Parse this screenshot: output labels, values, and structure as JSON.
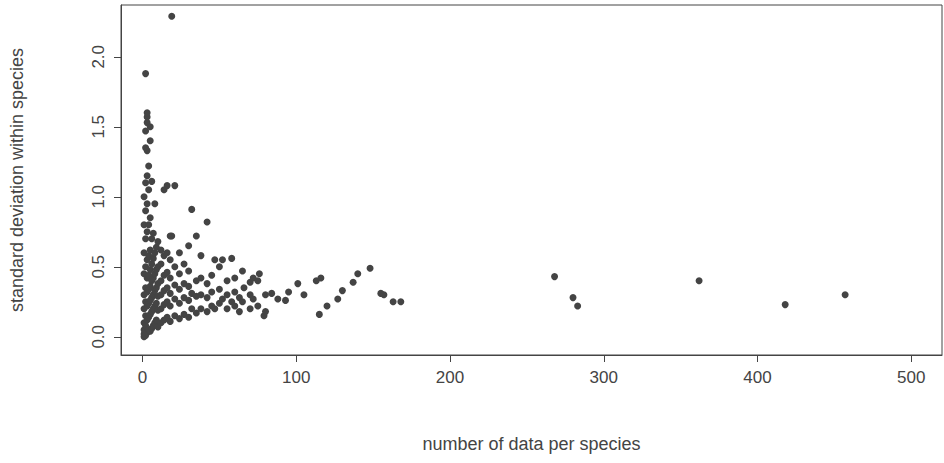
{
  "chart_data": {
    "type": "scatter",
    "x_label": "number of data per species",
    "y_label": "standard deviation within species",
    "color": "#444444",
    "marker": "circle",
    "grid": false,
    "xlim": [
      -14,
      520
    ],
    "ylim": [
      -0.13,
      2.37
    ],
    "xticks": [
      0,
      100,
      200,
      300,
      400,
      500
    ],
    "yticks": [
      {
        "value": 0,
        "label": "0.0"
      },
      {
        "value": 0.5,
        "label": "0.5"
      },
      {
        "value": 1,
        "label": "1.0"
      },
      {
        "value": 1.5,
        "label": "1.5"
      },
      {
        "value": 2,
        "label": "2.0"
      }
    ],
    "x": [
      1,
      1,
      1,
      1,
      1,
      1,
      1,
      1,
      1,
      1,
      2,
      2,
      2,
      2,
      2,
      2,
      2,
      2,
      2,
      2,
      2,
      2,
      3,
      3,
      3,
      3,
      3,
      3,
      3,
      3,
      3,
      3,
      3,
      3,
      3,
      4,
      4,
      4,
      4,
      4,
      4,
      4,
      4,
      4,
      5,
      5,
      5,
      5,
      5,
      5,
      5,
      5,
      5,
      6,
      6,
      6,
      6,
      6,
      6,
      6,
      7,
      7,
      7,
      7,
      7,
      7,
      8,
      8,
      8,
      8,
      8,
      8,
      9,
      9,
      9,
      9,
      9,
      10,
      10,
      10,
      10,
      10,
      10,
      12,
      12,
      12,
      12,
      12,
      12,
      14,
      14,
      14,
      14,
      14,
      14,
      16,
      16,
      16,
      16,
      16,
      16,
      18,
      18,
      18,
      18,
      18,
      18,
      19,
      19,
      21,
      21,
      21,
      21,
      21,
      24,
      24,
      24,
      24,
      24,
      27,
      27,
      27,
      27,
      30,
      30,
      30,
      30,
      30,
      32,
      32,
      32,
      35,
      35,
      35,
      35,
      38,
      38,
      38,
      38,
      42,
      42,
      42,
      42,
      45,
      45,
      45,
      47,
      47,
      50,
      50,
      50,
      52,
      52,
      55,
      55,
      55,
      58,
      58,
      60,
      60,
      60,
      63,
      63,
      65,
      65,
      66,
      70,
      70,
      70,
      72,
      72,
      75,
      75,
      76,
      79,
      80,
      80,
      84,
      88,
      93,
      95,
      101,
      105,
      113,
      115,
      116,
      120,
      127,
      130,
      137,
      140,
      148,
      155,
      157,
      163,
      168,
      268,
      280,
      283,
      362,
      418,
      457
    ],
    "values": [
      0.0,
      0.02,
      0.05,
      0.1,
      0.2,
      0.3,
      0.45,
      0.6,
      0.8,
      1.0,
      0.01,
      0.08,
      0.15,
      0.25,
      0.35,
      0.5,
      0.7,
      0.9,
      1.1,
      1.35,
      1.47,
      1.88,
      0.03,
      0.12,
      0.22,
      0.32,
      0.42,
      0.55,
      0.75,
      0.95,
      1.15,
      1.33,
      1.53,
      1.57,
      1.6,
      0.05,
      0.14,
      0.24,
      0.34,
      0.44,
      0.58,
      0.8,
      1.05,
      1.22,
      0.04,
      0.16,
      0.26,
      0.36,
      0.48,
      0.62,
      0.85,
      1.4,
      1.5,
      0.06,
      0.18,
      0.28,
      0.4,
      0.52,
      0.7,
      1.11,
      0.08,
      0.2,
      0.3,
      0.42,
      0.56,
      0.74,
      0.1,
      0.22,
      0.33,
      0.45,
      0.6,
      0.95,
      0.12,
      0.24,
      0.35,
      0.48,
      0.64,
      0.07,
      0.19,
      0.29,
      0.38,
      0.5,
      0.68,
      0.1,
      0.2,
      0.3,
      0.4,
      0.52,
      0.62,
      0.12,
      0.23,
      0.33,
      0.44,
      0.58,
      1.05,
      0.14,
      0.25,
      0.35,
      0.46,
      0.6,
      1.08,
      0.11,
      0.22,
      0.31,
      0.42,
      0.55,
      0.72,
      2.29,
      0.72,
      0.15,
      0.27,
      0.37,
      0.5,
      1.08,
      0.13,
      0.24,
      0.34,
      0.45,
      0.6,
      0.16,
      0.28,
      0.38,
      0.52,
      0.14,
      0.26,
      0.36,
      0.47,
      0.65,
      0.2,
      0.31,
      0.91,
      0.17,
      0.29,
      0.4,
      0.72,
      0.2,
      0.3,
      0.42,
      0.58,
      0.18,
      0.28,
      0.38,
      0.82,
      0.22,
      0.32,
      0.44,
      0.2,
      0.55,
      0.24,
      0.34,
      0.5,
      0.27,
      0.55,
      0.2,
      0.3,
      0.4,
      0.25,
      0.56,
      0.22,
      0.32,
      0.42,
      0.18,
      0.28,
      0.25,
      0.47,
      0.35,
      0.2,
      0.3,
      0.39,
      0.27,
      0.42,
      0.22,
      0.4,
      0.45,
      0.15,
      0.18,
      0.3,
      0.31,
      0.27,
      0.26,
      0.32,
      0.38,
      0.3,
      0.4,
      0.16,
      0.42,
      0.22,
      0.27,
      0.33,
      0.39,
      0.45,
      0.49,
      0.31,
      0.3,
      0.25,
      0.25,
      0.43,
      0.28,
      0.22,
      0.4,
      0.23,
      0.3
    ]
  }
}
